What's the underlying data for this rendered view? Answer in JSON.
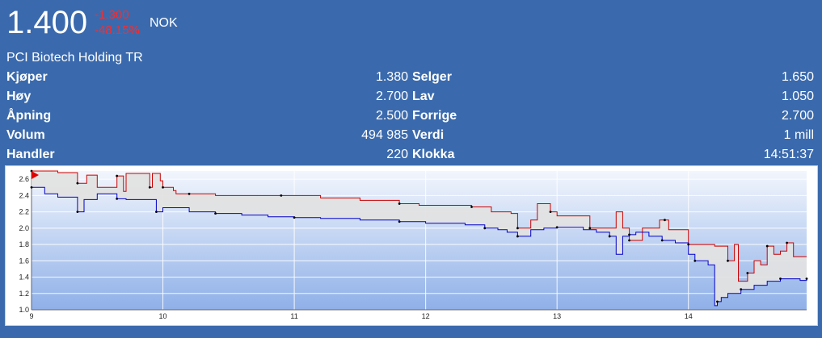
{
  "quote": {
    "price": "1.400",
    "change": "-1.300",
    "change_pct": "-48.15%",
    "currency": "NOK",
    "name": "PCI Biotech Holding TR",
    "colors": {
      "negative": "#ff2a2a",
      "background": "#3a6aad",
      "buy_line": "#0000cc",
      "sell_line": "#cc0000"
    }
  },
  "stats": [
    {
      "l1": "Kjøper",
      "v1": "1.380",
      "l2": "Selger",
      "v2": "1.650"
    },
    {
      "l1": "Høy",
      "v1": "2.700",
      "l2": "Lav",
      "v2": "1.050"
    },
    {
      "l1": "Åpning",
      "v1": "2.500",
      "l2": "Forrige",
      "v2": "2.700"
    },
    {
      "l1": "Volum",
      "v1": "494 985",
      "l2": "Verdi",
      "v2": "1 mill"
    },
    {
      "l1": "Handler",
      "v1": "220",
      "l2": "Klokka",
      "v2": "14:51:37"
    }
  ],
  "chart_data": {
    "type": "line",
    "x_ticks": [
      "9",
      "10",
      "11",
      "12",
      "13",
      "14"
    ],
    "y_ticks": [
      "1.0",
      "1.2",
      "1.4",
      "1.6",
      "1.8",
      "2.0",
      "2.2",
      "2.4",
      "2.6"
    ],
    "xlim": [
      9,
      14.9
    ],
    "ylim": [
      1.0,
      2.7
    ],
    "grid": true,
    "series": [
      {
        "role": "sell",
        "color": "#cc0000",
        "x": [
          9.0,
          9.08,
          9.2,
          9.35,
          9.42,
          9.5,
          9.65,
          9.7,
          9.72,
          9.9,
          9.92,
          9.98,
          10.0,
          10.08,
          10.1,
          10.2,
          10.4,
          10.6,
          10.9,
          11.2,
          11.5,
          11.8,
          11.95,
          12.0,
          12.35,
          12.5,
          12.65,
          12.7,
          12.8,
          12.85,
          12.95,
          13.0,
          13.2,
          13.25,
          13.45,
          13.5,
          13.55,
          13.65,
          13.78,
          13.82,
          13.85,
          13.9,
          14.0,
          14.1,
          14.2,
          14.3,
          14.35,
          14.38,
          14.45,
          14.5,
          14.55,
          14.6,
          14.65,
          14.7,
          14.75,
          14.8,
          14.9
        ],
        "y": [
          2.7,
          2.7,
          2.68,
          2.55,
          2.65,
          2.5,
          2.64,
          2.45,
          2.67,
          2.5,
          2.67,
          2.58,
          2.5,
          2.46,
          2.42,
          2.42,
          2.4,
          2.4,
          2.4,
          2.37,
          2.34,
          2.3,
          2.28,
          2.28,
          2.26,
          2.2,
          2.18,
          2.0,
          2.1,
          2.3,
          2.2,
          2.15,
          2.15,
          2.0,
          2.2,
          2.0,
          1.85,
          2.0,
          2.1,
          2.1,
          1.98,
          1.98,
          1.8,
          1.8,
          1.78,
          1.6,
          1.8,
          1.35,
          1.45,
          1.6,
          1.55,
          1.78,
          1.68,
          1.72,
          1.82,
          1.65,
          1.65
        ]
      },
      {
        "role": "buy",
        "color": "#0000cc",
        "x": [
          9.0,
          9.1,
          9.2,
          9.35,
          9.4,
          9.5,
          9.65,
          9.72,
          9.9,
          9.95,
          10.0,
          10.2,
          10.4,
          10.6,
          10.8,
          11.0,
          11.2,
          11.5,
          11.8,
          12.0,
          12.3,
          12.45,
          12.55,
          12.62,
          12.7,
          12.8,
          12.9,
          13.0,
          13.2,
          13.3,
          13.4,
          13.45,
          13.5,
          13.55,
          13.6,
          13.7,
          13.8,
          13.9,
          14.0,
          14.05,
          14.15,
          14.2,
          14.22,
          14.25,
          14.3,
          14.4,
          14.5,
          14.6,
          14.7,
          14.8,
          14.85,
          14.9
        ],
        "y": [
          2.5,
          2.42,
          2.38,
          2.2,
          2.35,
          2.42,
          2.36,
          2.35,
          2.35,
          2.2,
          2.25,
          2.2,
          2.18,
          2.16,
          2.14,
          2.13,
          2.12,
          2.1,
          2.08,
          2.06,
          2.04,
          2.0,
          1.98,
          1.95,
          1.9,
          1.98,
          2.0,
          2.01,
          1.98,
          1.95,
          1.9,
          1.68,
          1.9,
          1.92,
          1.95,
          1.9,
          1.85,
          1.82,
          1.68,
          1.6,
          1.55,
          1.05,
          1.1,
          1.15,
          1.2,
          1.25,
          1.3,
          1.35,
          1.38,
          1.38,
          1.36,
          1.38
        ]
      }
    ]
  }
}
